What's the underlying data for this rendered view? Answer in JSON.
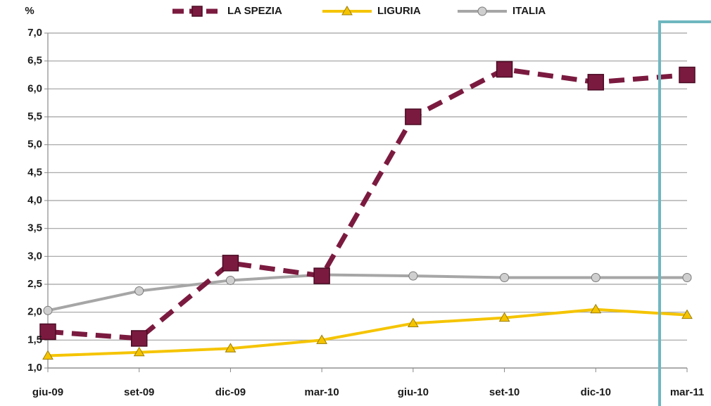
{
  "chart_data": {
    "type": "line",
    "y_label": "%",
    "categories": [
      "giu-09",
      "set-09",
      "dic-09",
      "mar-10",
      "giu-10",
      "set-10",
      "dic-10",
      "mar-11"
    ],
    "series": [
      {
        "name": "LA SPEZIA",
        "color": "#7b1a3f",
        "dash": true,
        "marker": "square",
        "values": [
          1.65,
          1.53,
          2.88,
          2.65,
          5.5,
          6.35,
          6.12,
          6.25
        ]
      },
      {
        "name": "LIGURIA",
        "color": "#f5c400",
        "dash": false,
        "marker": "triangle",
        "values": [
          1.22,
          1.28,
          1.35,
          1.5,
          1.8,
          1.9,
          2.05,
          1.95
        ]
      },
      {
        "name": "ITALIA",
        "color": "#a6a6a6",
        "dash": false,
        "marker": "circle",
        "values": [
          2.03,
          2.38,
          2.57,
          2.67,
          2.65,
          2.62,
          2.62,
          2.62
        ]
      }
    ],
    "ylim": [
      1.0,
      7.0
    ],
    "yticks": [
      {
        "value": 1.0,
        "label": "1,0"
      },
      {
        "value": 1.5,
        "label": "1,5"
      },
      {
        "value": 2.0,
        "label": "2,0"
      },
      {
        "value": 2.5,
        "label": "2,5"
      },
      {
        "value": 3.0,
        "label": "3,0"
      },
      {
        "value": 3.5,
        "label": "3,5"
      },
      {
        "value": 4.0,
        "label": "4,0"
      },
      {
        "value": 4.5,
        "label": "4,5"
      },
      {
        "value": 5.0,
        "label": "5,0"
      },
      {
        "value": 5.5,
        "label": "5,5"
      },
      {
        "value": 6.0,
        "label": "6,0"
      },
      {
        "value": 6.5,
        "label": "6,5"
      },
      {
        "value": 7.0,
        "label": "7,0"
      }
    ],
    "grid": true,
    "legend": "top"
  }
}
